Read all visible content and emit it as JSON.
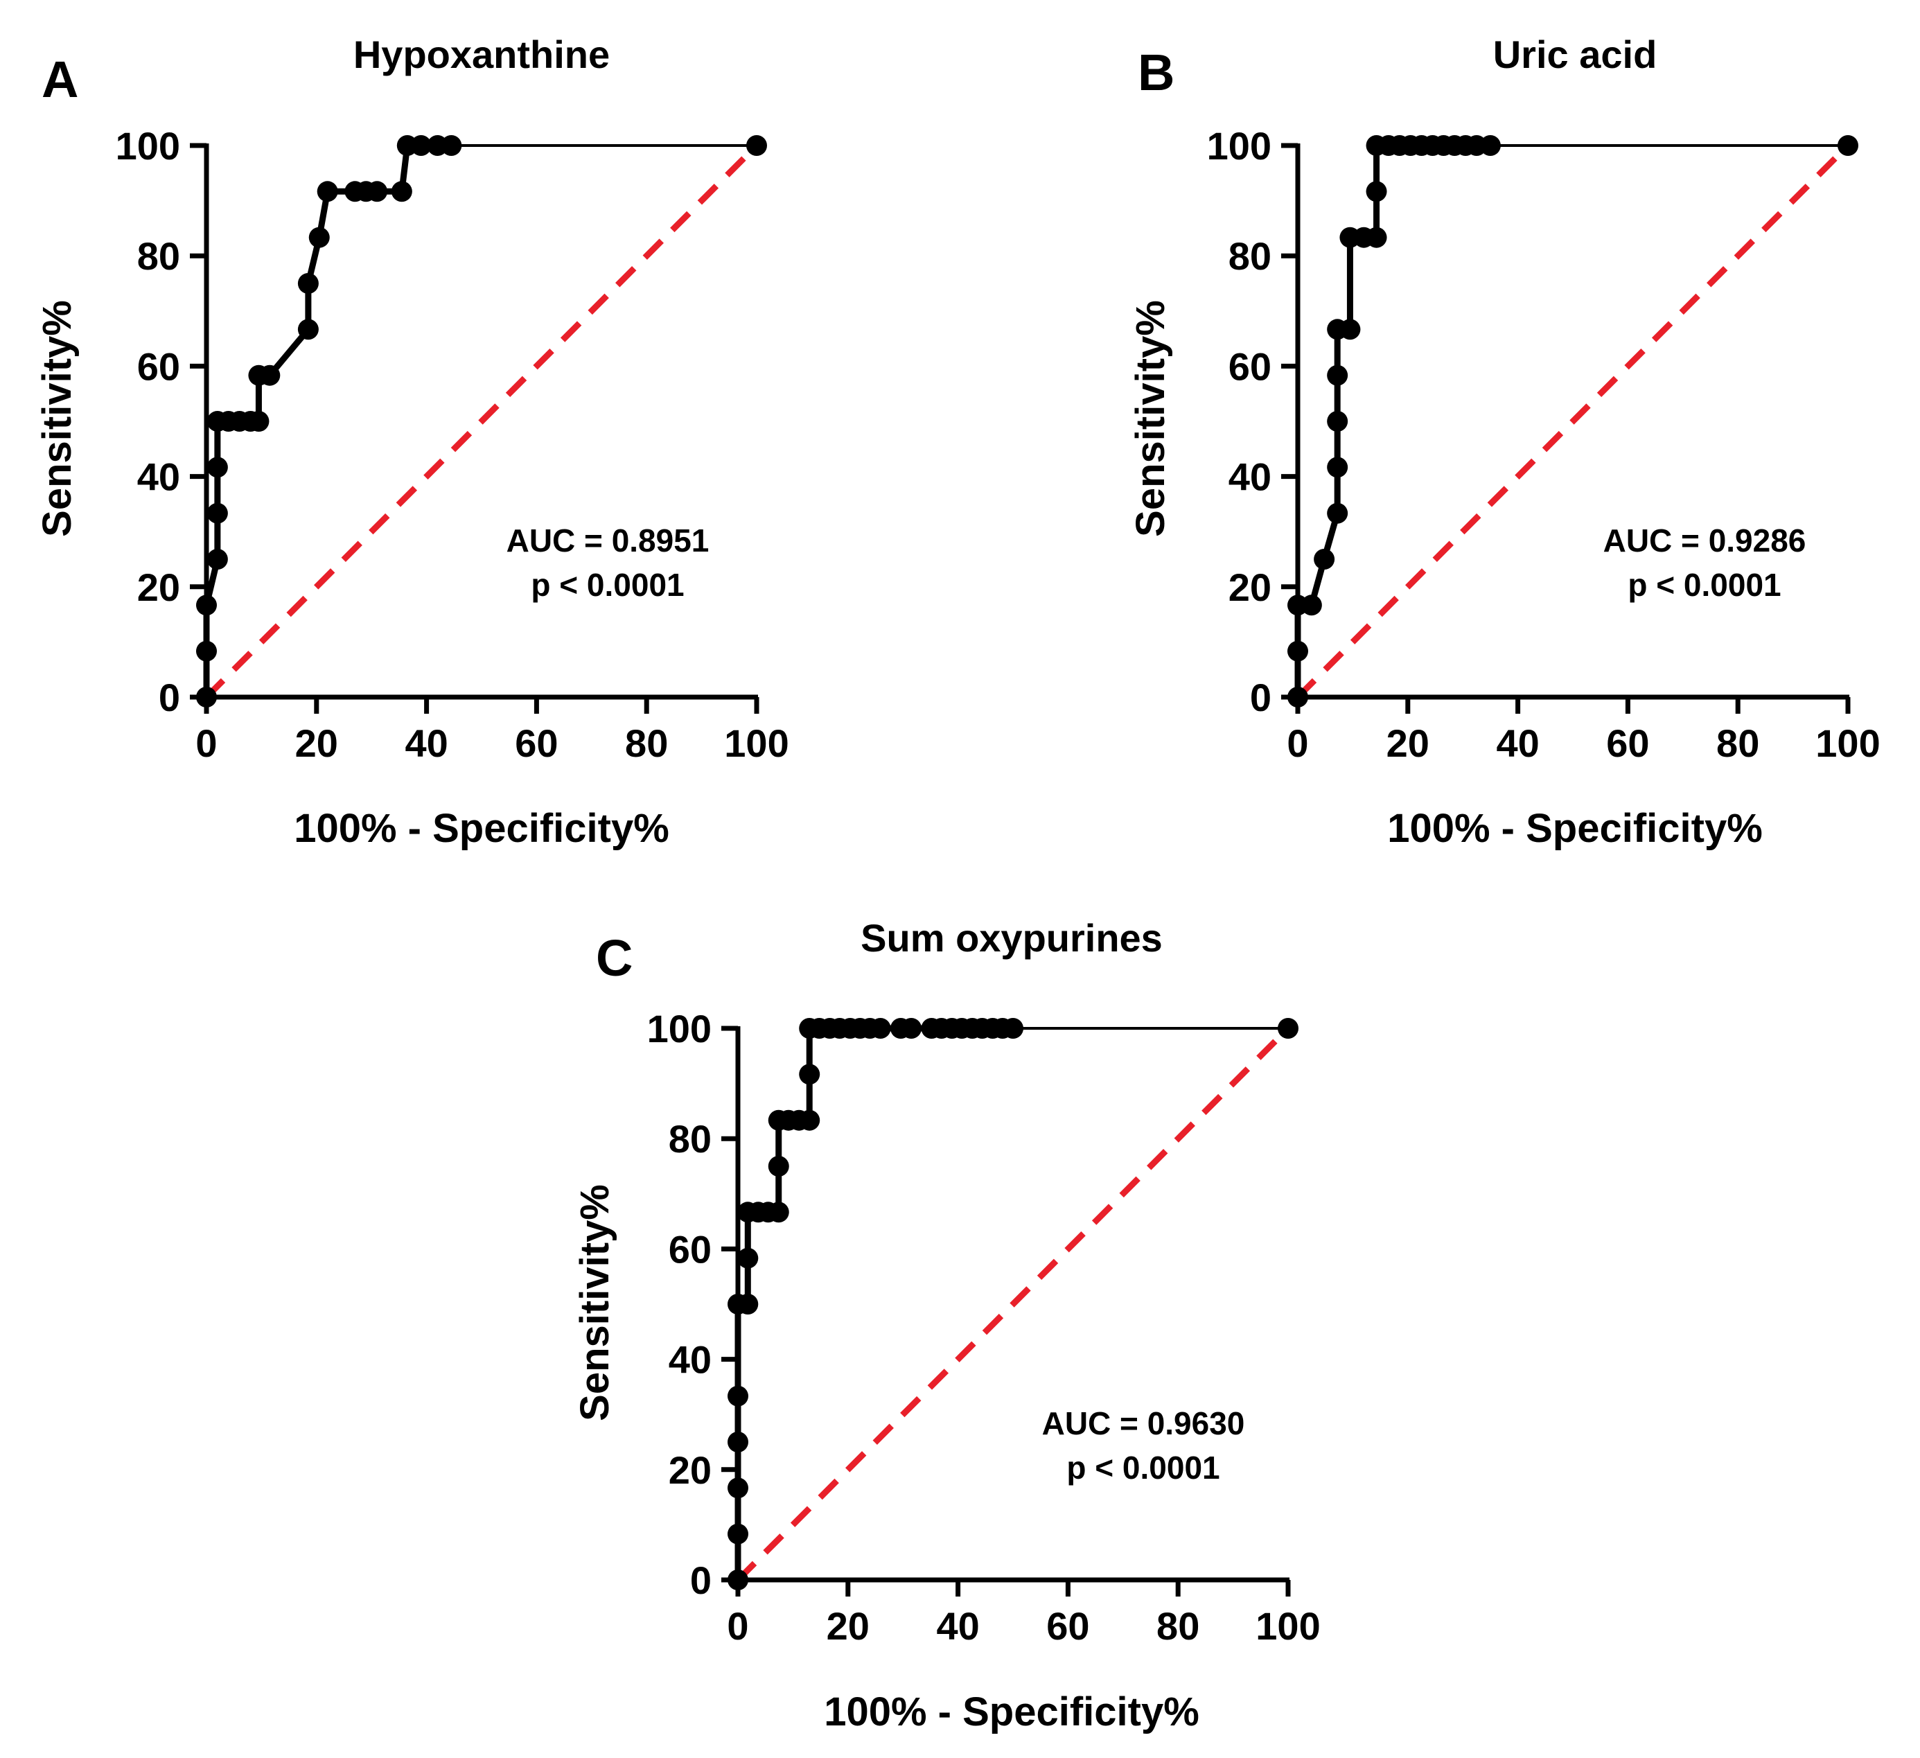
{
  "figure": {
    "panels": [
      "A",
      "B",
      "C"
    ]
  },
  "colors": {
    "curve": "#000000",
    "reference_line": "#e8202a",
    "axis": "#000000",
    "background": "#ffffff"
  },
  "chart_data": [
    {
      "type": "line",
      "panel_label": "A",
      "title": "Hypoxanthine",
      "xlabel": "100% - Specificity%",
      "ylabel": "Sensitivity%",
      "xlim": [
        0,
        100
      ],
      "ylim": [
        0,
        100
      ],
      "xticks": [
        0,
        20,
        40,
        60,
        80,
        100
      ],
      "yticks": [
        0,
        20,
        40,
        60,
        80,
        100
      ],
      "annotation": [
        "AUC = 0.8951",
        "p < 0.0001"
      ],
      "auc": 0.8951,
      "reference_line": {
        "x": [
          0,
          100
        ],
        "y": [
          0,
          100
        ],
        "style": "dashed"
      },
      "series": [
        {
          "name": "ROC curve",
          "points": [
            [
              0,
              0
            ],
            [
              0,
              8.33
            ],
            [
              0,
              16.67
            ],
            [
              2,
              25
            ],
            [
              2,
              33.33
            ],
            [
              2,
              41.67
            ],
            [
              2,
              50
            ],
            [
              4,
              50
            ],
            [
              6,
              50
            ],
            [
              8,
              50
            ],
            [
              9.5,
              50
            ],
            [
              9.5,
              58.33
            ],
            [
              11.5,
              58.33
            ],
            [
              18.5,
              66.67
            ],
            [
              18.5,
              75
            ],
            [
              20.5,
              83.33
            ],
            [
              22,
              91.67
            ],
            [
              27,
              91.67
            ],
            [
              29,
              91.67
            ],
            [
              31,
              91.67
            ],
            [
              35.5,
              91.67
            ],
            [
              36.5,
              100
            ],
            [
              39,
              100
            ],
            [
              42,
              100
            ],
            [
              44.5,
              100
            ],
            [
              100,
              100
            ]
          ]
        }
      ]
    },
    {
      "type": "line",
      "panel_label": "B",
      "title": "Uric acid",
      "xlabel": "100% - Specificity%",
      "ylabel": "Sensitivity%",
      "xlim": [
        0,
        100
      ],
      "ylim": [
        0,
        100
      ],
      "xticks": [
        0,
        20,
        40,
        60,
        80,
        100
      ],
      "yticks": [
        0,
        20,
        40,
        60,
        80,
        100
      ],
      "annotation": [
        "AUC = 0.9286",
        "p < 0.0001"
      ],
      "auc": 0.9286,
      "reference_line": {
        "x": [
          0,
          100
        ],
        "y": [
          0,
          100
        ],
        "style": "dashed"
      },
      "series": [
        {
          "name": "ROC curve",
          "points": [
            [
              0,
              0
            ],
            [
              0,
              8.33
            ],
            [
              0,
              16.67
            ],
            [
              2.5,
              16.67
            ],
            [
              4.8,
              25
            ],
            [
              7.2,
              33.33
            ],
            [
              7.2,
              41.67
            ],
            [
              7.2,
              50
            ],
            [
              7.2,
              58.33
            ],
            [
              7.2,
              66.67
            ],
            [
              9.5,
              66.67
            ],
            [
              9.5,
              83.33
            ],
            [
              12,
              83.33
            ],
            [
              14.3,
              83.33
            ],
            [
              14.3,
              91.67
            ],
            [
              14.3,
              100
            ],
            [
              16.5,
              100
            ],
            [
              18.5,
              100
            ],
            [
              20.5,
              100
            ],
            [
              22.5,
              100
            ],
            [
              24.5,
              100
            ],
            [
              26.5,
              100
            ],
            [
              28.5,
              100
            ],
            [
              30.5,
              100
            ],
            [
              32.5,
              100
            ],
            [
              35,
              100
            ],
            [
              100,
              100
            ]
          ]
        }
      ]
    },
    {
      "type": "line",
      "panel_label": "C",
      "title": "Sum oxypurines",
      "xlabel": "100% - Specificity%",
      "ylabel": "Sensitivity%",
      "xlim": [
        0,
        100
      ],
      "ylim": [
        0,
        100
      ],
      "xticks": [
        0,
        20,
        40,
        60,
        80,
        100
      ],
      "yticks": [
        0,
        20,
        40,
        60,
        80,
        100
      ],
      "annotation": [
        "AUC = 0.9630",
        "p < 0.0001"
      ],
      "auc": 0.963,
      "reference_line": {
        "x": [
          0,
          100
        ],
        "y": [
          0,
          100
        ],
        "style": "dashed"
      },
      "series": [
        {
          "name": "ROC curve",
          "points": [
            [
              0,
              0
            ],
            [
              0,
              8.33
            ],
            [
              0,
              16.67
            ],
            [
              0,
              25
            ],
            [
              0,
              33.33
            ],
            [
              0,
              50
            ],
            [
              1.8,
              50
            ],
            [
              1.8,
              58.33
            ],
            [
              1.8,
              66.67
            ],
            [
              3.7,
              66.67
            ],
            [
              5.5,
              66.67
            ],
            [
              7.4,
              66.67
            ],
            [
              7.4,
              75
            ],
            [
              7.4,
              83.33
            ],
            [
              9.2,
              83.33
            ],
            [
              11.1,
              83.33
            ],
            [
              13,
              83.33
            ],
            [
              13,
              91.67
            ],
            [
              13,
              100
            ],
            [
              14.8,
              100
            ],
            [
              16.7,
              100
            ],
            [
              18.5,
              100
            ],
            [
              20.4,
              100
            ],
            [
              22.2,
              100
            ],
            [
              24,
              100
            ],
            [
              25.9,
              100
            ],
            [
              29.6,
              100
            ],
            [
              31.5,
              100
            ],
            [
              35.2,
              100
            ],
            [
              37,
              100
            ],
            [
              38.9,
              100
            ],
            [
              40.7,
              100
            ],
            [
              42.6,
              100
            ],
            [
              44.4,
              100
            ],
            [
              46.3,
              100
            ],
            [
              48.1,
              100
            ],
            [
              50,
              100
            ],
            [
              100,
              100
            ]
          ]
        }
      ]
    }
  ]
}
